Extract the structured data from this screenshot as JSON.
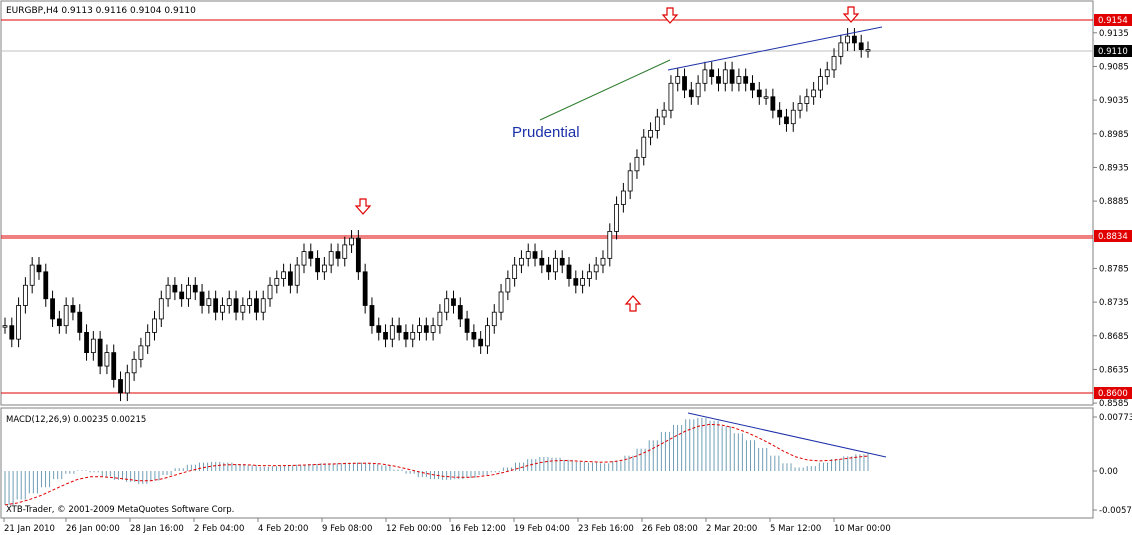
{
  "window": {
    "title": "EURGBP,H4  0.9113 0.9116 0.9104 0.9110"
  },
  "main": {
    "price_axis_labels": [
      "0.9135",
      "0.9085",
      "0.9035",
      "0.8985",
      "0.8935",
      "0.8885",
      "0.8785",
      "0.8735",
      "0.8685",
      "0.8635",
      "0.8585"
    ],
    "price_badges": [
      {
        "text": "0.9154",
        "type": "level"
      },
      {
        "text": "0.9110",
        "type": "current"
      },
      {
        "text": "0.8834",
        "type": "level"
      },
      {
        "text": "0.8600",
        "type": "level"
      }
    ],
    "annotation": "Prudential"
  },
  "macd": {
    "label": "MACD(12,26,9) 0.00235 0.00215",
    "axis_labels": [
      "0.00773",
      "0.00",
      "-0.00575"
    ],
    "copyright": "XTB-Trader, © 2001-2009 MetaQuotes Software Corp."
  },
  "time_axis": [
    "21 Jan 2010",
    "26 Jan 00:00",
    "28 Jan 16:00",
    "2 Feb 04:00",
    "4 Feb 20:00",
    "9 Feb 08:00",
    "12 Feb 00:00",
    "16 Feb 12:00",
    "19 Feb 04:00",
    "23 Feb 16:00",
    "26 Feb 08:00",
    "2 Mar 20:00",
    "5 Mar 12:00",
    "10 Mar 00:00"
  ],
  "colors": {
    "level_line": "#e00000",
    "trend_line": "#1b2fa8",
    "macd_hist": "#6f9eb5",
    "macd_signal": "#e00000",
    "candle": "#000000"
  },
  "chart_data": {
    "type": "candlestick",
    "symbol": "EURGBP",
    "timeframe": "H4",
    "ohlc_last": {
      "open": 0.9113,
      "high": 0.9116,
      "low": 0.9104,
      "close": 0.911
    },
    "horizontal_levels": [
      0.9154,
      0.8834,
      0.86
    ],
    "ylim": [
      0.8585,
      0.916
    ],
    "close_series": [
      0.87,
      0.868,
      0.873,
      0.876,
      0.879,
      0.878,
      0.874,
      0.871,
      0.87,
      0.873,
      0.872,
      0.869,
      0.866,
      0.868,
      0.864,
      0.866,
      0.862,
      0.86,
      0.863,
      0.865,
      0.867,
      0.869,
      0.871,
      0.874,
      0.876,
      0.875,
      0.874,
      0.876,
      0.875,
      0.873,
      0.874,
      0.872,
      0.873,
      0.874,
      0.872,
      0.873,
      0.874,
      0.872,
      0.874,
      0.876,
      0.877,
      0.878,
      0.876,
      0.879,
      0.881,
      0.88,
      0.878,
      0.879,
      0.881,
      0.88,
      0.882,
      0.883,
      0.878,
      0.873,
      0.87,
      0.869,
      0.868,
      0.87,
      0.869,
      0.868,
      0.869,
      0.87,
      0.869,
      0.87,
      0.872,
      0.874,
      0.873,
      0.871,
      0.869,
      0.868,
      0.867,
      0.87,
      0.872,
      0.875,
      0.877,
      0.879,
      0.88,
      0.881,
      0.88,
      0.879,
      0.878,
      0.88,
      0.879,
      0.877,
      0.876,
      0.877,
      0.878,
      0.879,
      0.88,
      0.884,
      0.888,
      0.89,
      0.893,
      0.895,
      0.898,
      0.899,
      0.901,
      0.902,
      0.906,
      0.907,
      0.905,
      0.904,
      0.906,
      0.908,
      0.907,
      0.906,
      0.908,
      0.906,
      0.907,
      0.906,
      0.905,
      0.904,
      0.904,
      0.902,
      0.901,
      0.9,
      0.902,
      0.903,
      0.904,
      0.905,
      0.907,
      0.908,
      0.91,
      0.912,
      0.913,
      0.912,
      0.911,
      0.911
    ],
    "macd_values": [
      -0.005,
      -0.0042,
      -0.0033,
      -0.0024,
      -0.0012,
      -0.0004,
      0.0001,
      -0.0002,
      -0.0008,
      -0.0013,
      -0.0016,
      -0.0019,
      -0.0014,
      -0.0006,
      0.0004,
      0.0009,
      0.0012,
      0.0013,
      0.0012,
      0.001,
      0.0008,
      0.0006,
      0.0007,
      0.0008,
      0.0009,
      0.001,
      0.0011,
      0.0011,
      0.0012,
      0.0012,
      0.0011,
      0.0008,
      0.0002,
      -0.0004,
      -0.0009,
      -0.0012,
      -0.0013,
      -0.0012,
      -0.001,
      -0.0006,
      -0.0002,
      0.0005,
      0.0012,
      0.0017,
      0.002,
      0.0019,
      0.0016,
      0.0013,
      0.0012,
      0.0011,
      0.0014,
      0.0022,
      0.0032,
      0.0044,
      0.0056,
      0.0066,
      0.0074,
      0.0076,
      0.0072,
      0.0064,
      0.0054,
      0.0044,
      0.0033,
      0.0022,
      0.0011,
      0.0005,
      0.0007,
      0.0012,
      0.0017,
      0.0021,
      0.0024,
      0.0025
    ],
    "macd_params": "MACD(12,26,9)",
    "macd_last": 0.00235,
    "signal_last": 0.00215
  }
}
